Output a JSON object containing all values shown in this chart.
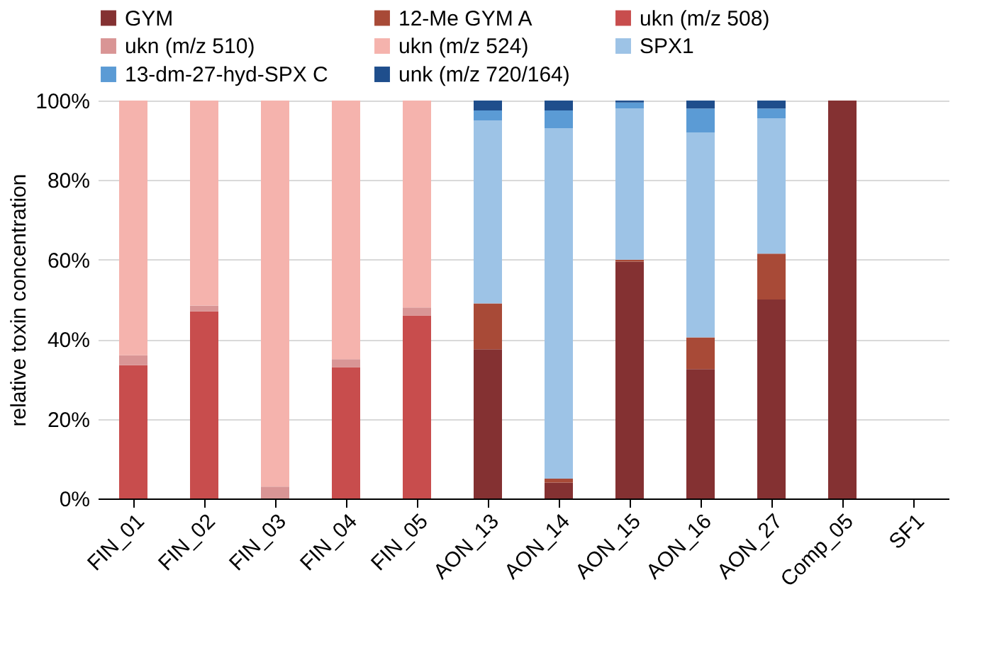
{
  "chart_data": {
    "type": "bar",
    "stacked": true,
    "ylabel": "relative  toxin concentration",
    "categories": [
      "FIN_01",
      "FIN_02",
      "FIN_03",
      "FIN_04",
      "FIN_05",
      "AON_13",
      "AON_14",
      "AON_15",
      "AON_16",
      "AON_27",
      "Comp_05",
      "SF1"
    ],
    "series": [
      {
        "name": "GYM",
        "color": "#843132",
        "values": [
          null,
          null,
          null,
          null,
          null,
          37.5,
          4,
          59.5,
          32.5,
          50,
          100,
          null
        ]
      },
      {
        "name": "12-Me GYM A",
        "color": "#a84a37",
        "values": [
          null,
          null,
          null,
          null,
          null,
          11.5,
          1,
          0.5,
          8,
          11.5,
          null,
          null
        ]
      },
      {
        "name": "ukn (m/z 508)",
        "color": "#c84d4d",
        "values": [
          33.5,
          47,
          null,
          33,
          46,
          null,
          null,
          null,
          null,
          null,
          null,
          null
        ]
      },
      {
        "name": "ukn (m/z 510)",
        "color": "#d99595",
        "values": [
          2.5,
          1.5,
          3,
          2,
          2,
          null,
          null,
          null,
          null,
          null,
          null,
          null
        ]
      },
      {
        "name": "ukn (m/z 524)",
        "color": "#f5b3ad",
        "values": [
          64,
          51.5,
          97,
          65,
          52,
          null,
          null,
          null,
          null,
          null,
          null,
          null
        ]
      },
      {
        "name": "SPX1",
        "color": "#9dc3e6",
        "values": [
          null,
          null,
          null,
          null,
          null,
          46,
          88,
          38,
          51.5,
          34,
          null,
          null
        ]
      },
      {
        "name": "13-dm-27-hyd-SPX C",
        "color": "#5b9bd5",
        "values": [
          null,
          null,
          null,
          null,
          null,
          2.5,
          4.5,
          1.5,
          6,
          2.5,
          null,
          null
        ]
      },
      {
        "name": "unk (m/z 720/164)",
        "color": "#1f4e8c",
        "values": [
          null,
          null,
          null,
          null,
          null,
          2.5,
          2.5,
          0.5,
          2,
          2,
          null,
          null
        ]
      }
    ],
    "ylim": [
      0,
      100
    ],
    "yticks": [
      {
        "value": 0,
        "label": "0%"
      },
      {
        "value": 20,
        "label": "20%"
      },
      {
        "value": 40,
        "label": "40%"
      },
      {
        "value": 60,
        "label": "60%"
      },
      {
        "value": 80,
        "label": "80%"
      },
      {
        "value": 100,
        "label": "100%"
      }
    ],
    "grid": "y",
    "legend": "top"
  }
}
